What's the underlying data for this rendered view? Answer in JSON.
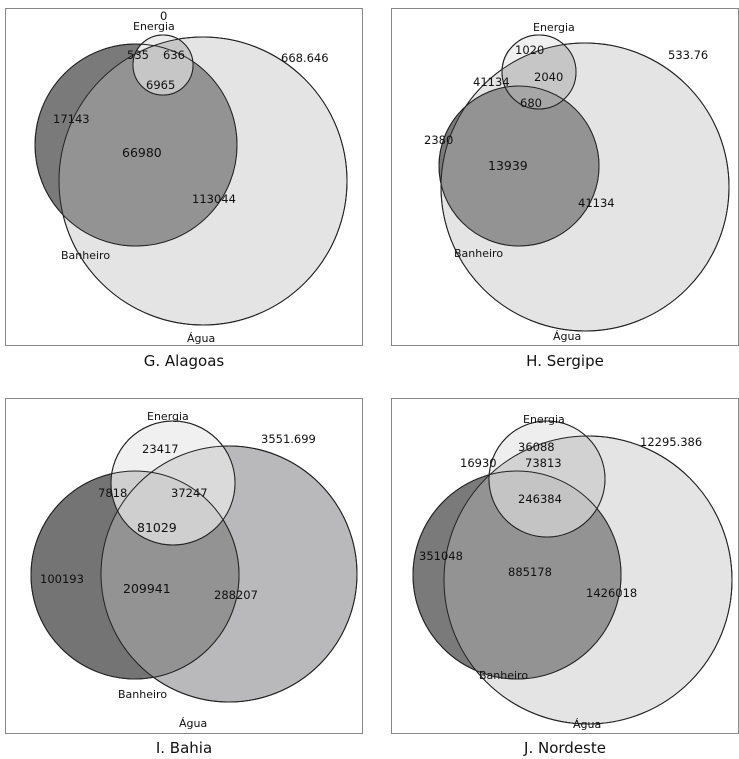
{
  "panels": {
    "g": {
      "caption": "G. Alagoas",
      "labels": {
        "energia": "Energia",
        "banheiro": "Banheiro",
        "agua": "Água"
      },
      "values": {
        "zero": "0",
        "a": "535",
        "b": "636",
        "c": "6965",
        "d": "17143",
        "e": "66980",
        "f": "113044",
        "outside": "668.646"
      }
    },
    "h": {
      "caption": "H. Sergipe",
      "labels": {
        "energia": "Energia",
        "banheiro": "Banheiro",
        "agua": "Água"
      },
      "values": {
        "a": "1020",
        "b": "2040",
        "c": "41134",
        "d": "680",
        "e": "2380",
        "f": "13939",
        "g": "41134",
        "outside": "533.76"
      }
    },
    "i": {
      "caption": "I. Bahia",
      "labels": {
        "energia": "Energia",
        "banheiro": "Banheiro",
        "agua": "Água"
      },
      "values": {
        "a": "23417",
        "b": "7818",
        "c": "37247",
        "d": "81029",
        "e": "100193",
        "f": "209941",
        "g": "288207",
        "outside": "3551.699"
      }
    },
    "j": {
      "caption": "J. Nordeste",
      "labels": {
        "energia": "Energia",
        "banheiro": "Banheiro",
        "agua": "Água"
      },
      "values": {
        "a": "36088",
        "b": "16930",
        "c": "73813",
        "d": "246384",
        "e": "351048",
        "f": "885178",
        "g": "1426018",
        "outside": "12295.386"
      }
    }
  },
  "colors": {
    "water_light": "#e4e4e4",
    "water_bahia": "#b9b9bb",
    "bath": "#8c8c8c",
    "bath_dark": "#747474",
    "energy_light": "#f0f0f0",
    "overlap_all": "#cfcfcf"
  }
}
